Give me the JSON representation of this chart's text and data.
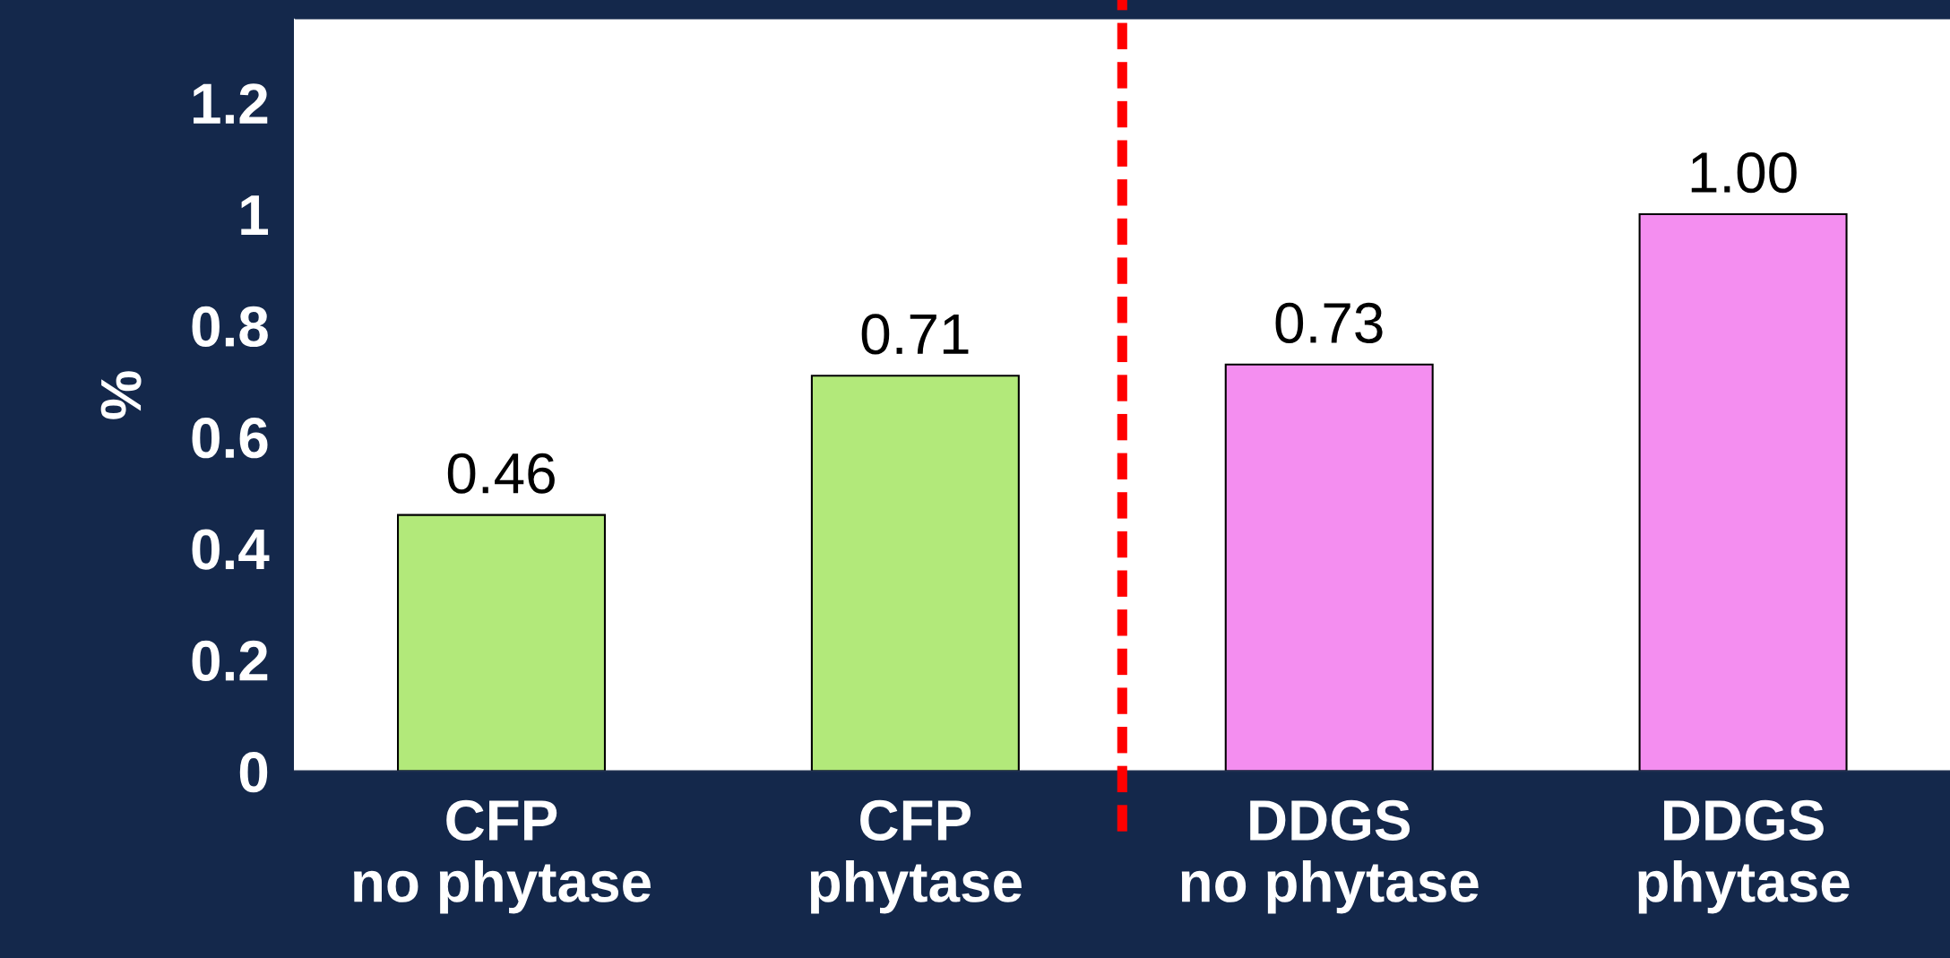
{
  "chart_data": {
    "type": "bar",
    "ylabel": "%",
    "categories": [
      "CFP\nno phytase",
      "CFP\nphytase",
      "DDGS\nno phytase",
      "DDGS\nphytase"
    ],
    "values": [
      0.46,
      0.71,
      0.73,
      1.0
    ],
    "value_labels": [
      "0.46",
      "0.71",
      "0.73",
      "1.00"
    ],
    "colors": [
      "#b2e97a",
      "#b2e97a",
      "#f48ef0",
      "#f48ef0"
    ],
    "ylim": [
      0,
      1.35
    ],
    "yticks": [
      0,
      0.2,
      0.4,
      0.6,
      0.8,
      1,
      1.2
    ],
    "grid": false
  }
}
